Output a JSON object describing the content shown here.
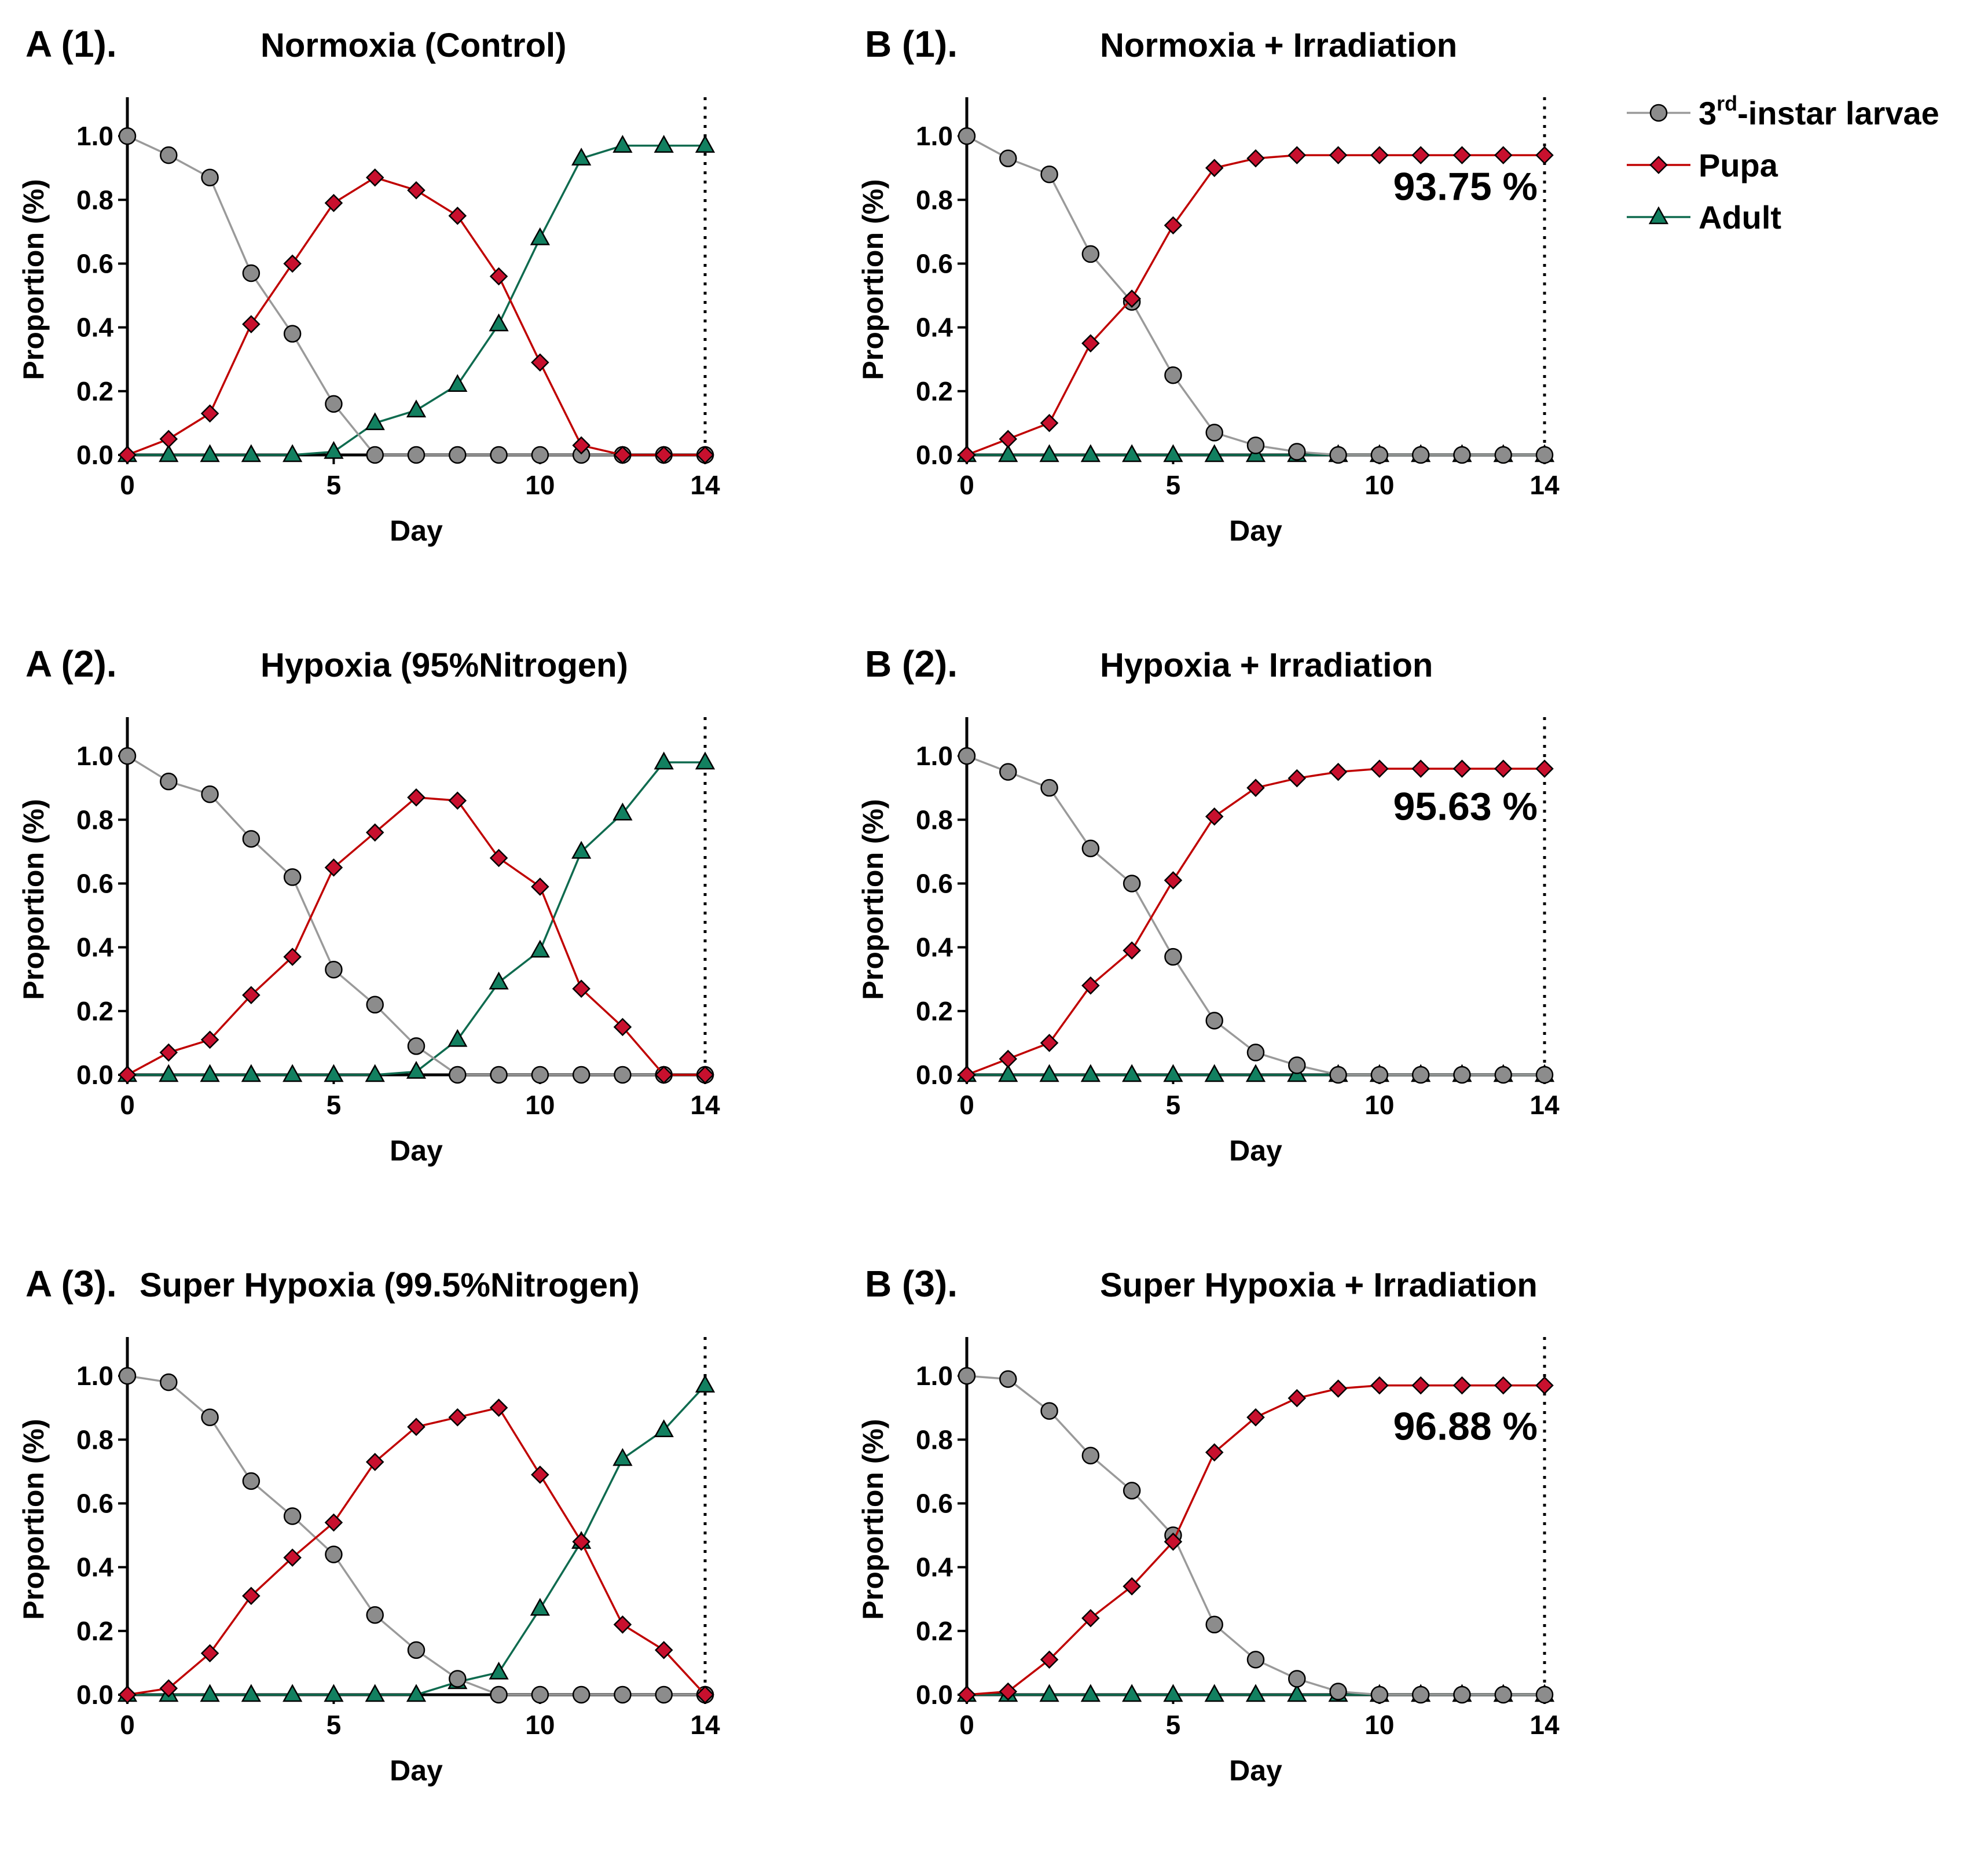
{
  "figure": {
    "legend": {
      "items": [
        {
          "name": "3rd-instar larvae",
          "pre": "3",
          "sup": "rd",
          "post": "-instar larvae",
          "marker": "circle",
          "line_color": "#9a9a9a",
          "fill_color": "#8c8c8c"
        },
        {
          "name": "Pupa",
          "text": "Pupa",
          "marker": "diamond",
          "line_color": "#c00000",
          "fill_color": "#c8102e"
        },
        {
          "name": "Adult",
          "text": "Adult",
          "marker": "triangle",
          "line_color": "#0f6b4f",
          "fill_color": "#128060"
        }
      ]
    }
  },
  "chart_data": [
    {
      "id": "A1",
      "type": "line",
      "panel_label": "A (1).",
      "title": "Normoxia (Control)",
      "xlabel": "Day",
      "ylabel": "Proportion (%)",
      "xlim": [
        0,
        14
      ],
      "ylim": [
        0,
        1.1
      ],
      "xticks": [
        0,
        5,
        10,
        14
      ],
      "yticks": [
        0.0,
        0.2,
        0.4,
        0.6,
        0.8,
        1.0
      ],
      "vline_x": 14,
      "annotation": "",
      "x": [
        0,
        1,
        2,
        3,
        4,
        5,
        6,
        7,
        8,
        9,
        10,
        11,
        12,
        13,
        14
      ],
      "series": [
        {
          "name": "3rd-instar larvae",
          "values": [
            1.0,
            0.94,
            0.87,
            0.57,
            0.38,
            0.16,
            0.0,
            0.0,
            0.0,
            0.0,
            0.0,
            0.0,
            0.0,
            0.0,
            0.0
          ]
        },
        {
          "name": "Pupa",
          "values": [
            0.0,
            0.05,
            0.13,
            0.41,
            0.6,
            0.79,
            0.87,
            0.83,
            0.75,
            0.56,
            0.29,
            0.03,
            0.0,
            0.0,
            0.0
          ]
        },
        {
          "name": "Adult",
          "values": [
            0.0,
            0.0,
            0.0,
            0.0,
            0.0,
            0.01,
            0.1,
            0.14,
            0.22,
            0.41,
            0.68,
            0.93,
            0.97,
            0.97,
            0.97
          ]
        }
      ]
    },
    {
      "id": "B1",
      "type": "line",
      "panel_label": "B (1).",
      "title": "Normoxia + Irradiation",
      "xlabel": "Day",
      "ylabel": "Proportion (%)",
      "xlim": [
        0,
        14
      ],
      "ylim": [
        0,
        1.1
      ],
      "xticks": [
        0,
        5,
        10,
        14
      ],
      "yticks": [
        0.0,
        0.2,
        0.4,
        0.6,
        0.8,
        1.0
      ],
      "vline_x": 14,
      "annotation": "93.75 %",
      "x": [
        0,
        1,
        2,
        3,
        4,
        5,
        6,
        7,
        8,
        9,
        10,
        11,
        12,
        13,
        14
      ],
      "series": [
        {
          "name": "3rd-instar larvae",
          "values": [
            1.0,
            0.93,
            0.88,
            0.63,
            0.48,
            0.25,
            0.07,
            0.03,
            0.01,
            0.0,
            0.0,
            0.0,
            0.0,
            0.0,
            0.0
          ]
        },
        {
          "name": "Pupa",
          "values": [
            0.0,
            0.05,
            0.1,
            0.35,
            0.49,
            0.72,
            0.9,
            0.93,
            0.94,
            0.94,
            0.94,
            0.94,
            0.94,
            0.94,
            0.94
          ]
        },
        {
          "name": "Adult",
          "values": [
            0.0,
            0.0,
            0.0,
            0.0,
            0.0,
            0.0,
            0.0,
            0.0,
            0.0,
            0.0,
            0.0,
            0.0,
            0.0,
            0.0,
            0.0
          ]
        }
      ]
    },
    {
      "id": "A2",
      "type": "line",
      "panel_label": "A (2).",
      "title": "Hypoxia (95%Nitrogen)",
      "xlabel": "Day",
      "ylabel": "Proportion (%)",
      "xlim": [
        0,
        14
      ],
      "ylim": [
        0,
        1.1
      ],
      "xticks": [
        0,
        5,
        10,
        14
      ],
      "yticks": [
        0.0,
        0.2,
        0.4,
        0.6,
        0.8,
        1.0
      ],
      "vline_x": 14,
      "annotation": "",
      "x": [
        0,
        1,
        2,
        3,
        4,
        5,
        6,
        7,
        8,
        9,
        10,
        11,
        12,
        13,
        14
      ],
      "series": [
        {
          "name": "3rd-instar larvae",
          "values": [
            1.0,
            0.92,
            0.88,
            0.74,
            0.62,
            0.33,
            0.22,
            0.09,
            0.0,
            0.0,
            0.0,
            0.0,
            0.0,
            0.0,
            0.0
          ]
        },
        {
          "name": "Pupa",
          "values": [
            0.0,
            0.07,
            0.11,
            0.25,
            0.37,
            0.65,
            0.76,
            0.87,
            0.86,
            0.68,
            0.59,
            0.27,
            0.15,
            0.0,
            0.0
          ]
        },
        {
          "name": "Adult",
          "values": [
            0.0,
            0.0,
            0.0,
            0.0,
            0.0,
            0.0,
            0.0,
            0.01,
            0.11,
            0.29,
            0.39,
            0.7,
            0.82,
            0.98,
            0.98
          ]
        }
      ]
    },
    {
      "id": "B2",
      "type": "line",
      "panel_label": "B (2).",
      "title": "Hypoxia + Irradiation",
      "xlabel": "Day",
      "ylabel": "Proportion (%)",
      "xlim": [
        0,
        14
      ],
      "ylim": [
        0,
        1.1
      ],
      "xticks": [
        0,
        5,
        10,
        14
      ],
      "yticks": [
        0.0,
        0.2,
        0.4,
        0.6,
        0.8,
        1.0
      ],
      "vline_x": 14,
      "annotation": "95.63 %",
      "x": [
        0,
        1,
        2,
        3,
        4,
        5,
        6,
        7,
        8,
        9,
        10,
        11,
        12,
        13,
        14
      ],
      "series": [
        {
          "name": "3rd-instar larvae",
          "values": [
            1.0,
            0.95,
            0.9,
            0.71,
            0.6,
            0.37,
            0.17,
            0.07,
            0.03,
            0.0,
            0.0,
            0.0,
            0.0,
            0.0,
            0.0
          ]
        },
        {
          "name": "Pupa",
          "values": [
            0.0,
            0.05,
            0.1,
            0.28,
            0.39,
            0.61,
            0.81,
            0.9,
            0.93,
            0.95,
            0.96,
            0.96,
            0.96,
            0.96,
            0.96
          ]
        },
        {
          "name": "Adult",
          "values": [
            0.0,
            0.0,
            0.0,
            0.0,
            0.0,
            0.0,
            0.0,
            0.0,
            0.0,
            0.0,
            0.0,
            0.0,
            0.0,
            0.0,
            0.0
          ]
        }
      ]
    },
    {
      "id": "A3",
      "type": "line",
      "panel_label": "A (3).",
      "title": "Super Hypoxia (99.5%Nitrogen)",
      "xlabel": "Day",
      "ylabel": "Proportion (%)",
      "xlim": [
        0,
        14
      ],
      "ylim": [
        0,
        1.1
      ],
      "xticks": [
        0,
        5,
        10,
        14
      ],
      "yticks": [
        0.0,
        0.2,
        0.4,
        0.6,
        0.8,
        1.0
      ],
      "vline_x": 14,
      "annotation": "",
      "x": [
        0,
        1,
        2,
        3,
        4,
        5,
        6,
        7,
        8,
        9,
        10,
        11,
        12,
        13,
        14
      ],
      "series": [
        {
          "name": "3rd-instar larvae",
          "values": [
            1.0,
            0.98,
            0.87,
            0.67,
            0.56,
            0.44,
            0.25,
            0.14,
            0.05,
            0.0,
            0.0,
            0.0,
            0.0,
            0.0,
            0.0
          ]
        },
        {
          "name": "Pupa",
          "values": [
            0.0,
            0.02,
            0.13,
            0.31,
            0.43,
            0.54,
            0.73,
            0.84,
            0.87,
            0.9,
            0.69,
            0.48,
            0.22,
            0.14,
            0.0
          ]
        },
        {
          "name": "Adult",
          "values": [
            0.0,
            0.0,
            0.0,
            0.0,
            0.0,
            0.0,
            0.0,
            0.0,
            0.04,
            0.07,
            0.27,
            0.48,
            0.74,
            0.83,
            0.97
          ]
        }
      ]
    },
    {
      "id": "B3",
      "type": "line",
      "panel_label": "B (3).",
      "title": "Super Hypoxia + Irradiation",
      "xlabel": "Day",
      "ylabel": "Proportion (%)",
      "xlim": [
        0,
        14
      ],
      "ylim": [
        0,
        1.1
      ],
      "xticks": [
        0,
        5,
        10,
        14
      ],
      "yticks": [
        0.0,
        0.2,
        0.4,
        0.6,
        0.8,
        1.0
      ],
      "vline_x": 14,
      "annotation": "96.88 %",
      "x": [
        0,
        1,
        2,
        3,
        4,
        5,
        6,
        7,
        8,
        9,
        10,
        11,
        12,
        13,
        14
      ],
      "series": [
        {
          "name": "3rd-instar larvae",
          "values": [
            1.0,
            0.99,
            0.89,
            0.75,
            0.64,
            0.5,
            0.22,
            0.11,
            0.05,
            0.01,
            0.0,
            0.0,
            0.0,
            0.0,
            0.0
          ]
        },
        {
          "name": "Pupa",
          "values": [
            0.0,
            0.01,
            0.11,
            0.24,
            0.34,
            0.48,
            0.76,
            0.87,
            0.93,
            0.96,
            0.97,
            0.97,
            0.97,
            0.97,
            0.97
          ]
        },
        {
          "name": "Adult",
          "values": [
            0.0,
            0.0,
            0.0,
            0.0,
            0.0,
            0.0,
            0.0,
            0.0,
            0.0,
            0.0,
            0.0,
            0.0,
            0.0,
            0.0,
            0.0
          ]
        }
      ]
    }
  ]
}
